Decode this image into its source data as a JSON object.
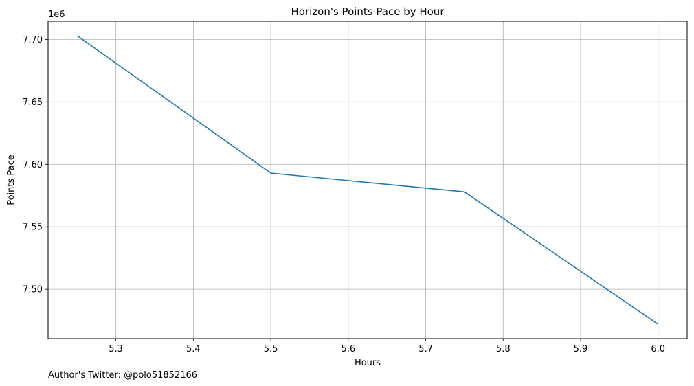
{
  "chart_data": {
    "type": "line",
    "title": "Horizon's Points Pace by Hour",
    "xlabel": "Hours",
    "ylabel": "Points Pace",
    "y_offset_label": "1e6",
    "y_multiplier": 1000000,
    "x": [
      5.25,
      5.5,
      5.75,
      6.0
    ],
    "series": [
      {
        "values": [
          7703000,
          7593000,
          7578000,
          7472000
        ],
        "color": "#1f77b4"
      }
    ],
    "xlim": [
      5.2125,
      6.0375
    ],
    "ylim": [
      7.4605,
      7.7145
    ],
    "x_ticks": [
      "5.3",
      "5.4",
      "5.5",
      "5.6",
      "5.7",
      "5.8",
      "5.9",
      "6.0"
    ],
    "y_ticks": [
      "7.50",
      "7.55",
      "7.60",
      "7.65",
      "7.70"
    ],
    "grid": true
  },
  "footer": {
    "text": "Author's Twitter: @polo51852166"
  }
}
